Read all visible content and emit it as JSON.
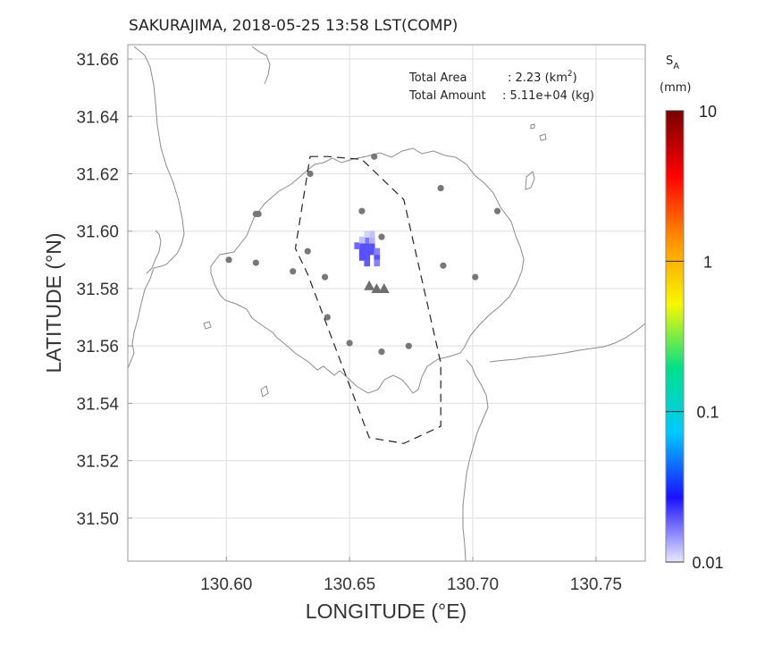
{
  "title": "SAKURAJIMA, 2018-05-25 13:58 LST(COMP)",
  "info": {
    "area_label": "Total Area",
    "area_value": ": 2.23 (km",
    "area_sup": "2",
    "area_close": ")",
    "amount_label": "Total Amount",
    "amount_value": ": 5.11e+04 (kg)"
  },
  "colorbar": {
    "symbol": "S",
    "subscript": "A",
    "unit": "(mm)",
    "scale": "log",
    "range": [
      0.01,
      10
    ],
    "tick_labels": [
      "10",
      "1",
      "0.1",
      "0.01"
    ],
    "tick_values": [
      10,
      1,
      0.1,
      0.01
    ],
    "colors": [
      "#e8e8ff",
      "#1a10ff",
      "#00c8ff",
      "#00e08a",
      "#f8f800",
      "#ff9000",
      "#ff0000",
      "#7a0000"
    ]
  },
  "chart_data": {
    "type": "scatter",
    "title": "SAKURAJIMA, 2018-05-25 13:58 LST(COMP)",
    "xlabel": "LONGITUDE (°E)",
    "ylabel": "LATITUDE (°N)",
    "xlim": [
      130.56,
      130.77
    ],
    "ylim": [
      31.485,
      31.665
    ],
    "x_ticks": [
      130.6,
      130.65,
      130.7,
      130.75
    ],
    "x_tick_labels": [
      "130.60",
      "130.65",
      "130.70",
      "130.75"
    ],
    "y_ticks": [
      31.5,
      31.52,
      31.54,
      31.56,
      31.58,
      31.6,
      31.62,
      31.64,
      31.66
    ],
    "y_tick_labels": [
      "31.50",
      "31.52",
      "31.54",
      "31.56",
      "31.58",
      "31.60",
      "31.62",
      "31.64",
      "31.66"
    ],
    "grid": true,
    "series": [
      {
        "kind": "stations",
        "marker": "circle",
        "color": "#777777",
        "points": [
          [
            130.66,
            31.626
          ],
          [
            130.634,
            31.62
          ],
          [
            130.655,
            31.607
          ],
          [
            130.612,
            31.606
          ],
          [
            130.613,
            31.606
          ],
          [
            130.663,
            31.598
          ],
          [
            130.633,
            31.593
          ],
          [
            130.601,
            31.59
          ],
          [
            130.612,
            31.589
          ],
          [
            130.627,
            31.586
          ],
          [
            130.64,
            31.584
          ],
          [
            130.688,
            31.588
          ],
          [
            130.701,
            31.584
          ],
          [
            130.687,
            31.615
          ],
          [
            130.71,
            31.607
          ],
          [
            130.641,
            31.57
          ],
          [
            130.65,
            31.561
          ],
          [
            130.663,
            31.558
          ],
          [
            130.674,
            31.56
          ]
        ]
      },
      {
        "kind": "craters",
        "marker": "triangle",
        "color": "#6f6f6f",
        "points": [
          [
            130.658,
            31.581
          ],
          [
            130.661,
            31.58
          ],
          [
            130.664,
            31.58
          ]
        ]
      },
      {
        "kind": "ash_deposit",
        "marker": "square",
        "cell_deg": 0.0022,
        "cells": [
          [
            130.655,
            31.595,
            0.02
          ],
          [
            130.657,
            31.595,
            0.02
          ],
          [
            130.659,
            31.595,
            0.02
          ],
          [
            130.655,
            31.593,
            0.02
          ],
          [
            130.657,
            31.593,
            0.02
          ],
          [
            130.659,
            31.593,
            0.02
          ],
          [
            130.655,
            31.591,
            0.02
          ],
          [
            130.657,
            31.591,
            0.02
          ],
          [
            130.661,
            31.591,
            0.02
          ],
          [
            130.653,
            31.595,
            0.018
          ],
          [
            130.657,
            31.597,
            0.017
          ],
          [
            130.659,
            31.597,
            0.013
          ],
          [
            130.661,
            31.593,
            0.016
          ],
          [
            130.657,
            31.589,
            0.019
          ],
          [
            130.661,
            31.589,
            0.016
          ],
          [
            130.659,
            31.599,
            0.012
          ],
          [
            130.657,
            31.599,
            0.011
          ],
          [
            130.655,
            31.597,
            0.012
          ]
        ]
      }
    ],
    "sampling_area": {
      "line": "dashed",
      "vertices": [
        [
          130.634,
          31.626
        ],
        [
          130.641,
          31.626
        ],
        [
          130.655,
          31.625
        ],
        [
          130.672,
          31.611
        ],
        [
          130.687,
          31.554
        ],
        [
          130.687,
          31.532
        ],
        [
          130.672,
          31.526
        ],
        [
          130.658,
          31.528
        ],
        [
          130.633,
          31.585
        ],
        [
          130.628,
          31.594
        ]
      ]
    }
  }
}
